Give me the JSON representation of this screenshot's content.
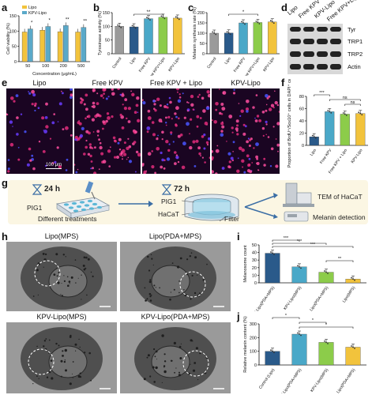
{
  "panels": {
    "a": {
      "label": "a",
      "ylabel": "Cell viability (%)",
      "xlabel": "Concentration (μg/mL)",
      "legend": [
        "Lipo",
        "KPV-Lipo"
      ],
      "colors": {
        "Lipo": "#f2c33c",
        "KPV-Lipo": "#5aa9c9"
      }
    },
    "b": {
      "label": "b",
      "ylabel": "Tyrosinase activity (%)",
      "sig": "**"
    },
    "c": {
      "label": "c",
      "ylabel": "Melanin synthesis rate (%)",
      "sig": "*"
    },
    "d": {
      "label": "d",
      "columns": [
        "Lipo",
        "Free KPV",
        "KPV-Lipo",
        "Free KPV+Lipo"
      ],
      "rows": [
        "Tyr",
        "TRP1",
        "TRP2",
        "Actin"
      ]
    },
    "e": {
      "label": "e",
      "titles": [
        "Lipo",
        "Free KPV",
        "Free KPV + Lipo",
        "KPV-Lipo"
      ],
      "scale": "100 μm"
    },
    "f": {
      "label": "f",
      "ylabel": "Proportion of BrdU⁺/Sox10⁺ cells in DAPI⁺ cells",
      "sig": [
        "***",
        "ns",
        "ns"
      ]
    },
    "g": {
      "label": "g",
      "t1": "24 h",
      "t2": "72 h",
      "pig1_left": "PIG1",
      "treat": "Different treatments",
      "pig1_mid": "PIG1",
      "hacat": "HaCaT",
      "filter": "Filter",
      "tem": "TEM of HaCaT",
      "melanin": "Melanin detection"
    },
    "h": {
      "label": "h",
      "titles": [
        "Lipo(MPS)",
        "Lipo(PDA+MPS)",
        "KPV-Lipo(MPS)",
        "KPV-Lipo(PDA+MPS)"
      ]
    },
    "i": {
      "label": "i",
      "ylabel": "Melanosome count",
      "sig": [
        "***",
        "***",
        "***",
        "**"
      ]
    },
    "j": {
      "label": "j",
      "ylabel": "Relative melanin content (%)",
      "sig": [
        "*",
        "*",
        "*"
      ]
    }
  },
  "chart_data": [
    {
      "id": "a",
      "type": "bar",
      "ylabel": "Cell viability (%)",
      "xlabel": "Concentration (μg/mL)",
      "categories": [
        "50",
        "100",
        "200",
        "500"
      ],
      "ylim": [
        0,
        150
      ],
      "yticks": [
        0,
        50,
        100,
        150
      ],
      "series": [
        {
          "name": "Lipo",
          "values": [
            97,
            103,
            98,
            97
          ]
        },
        {
          "name": "KPV-Lipo",
          "values": [
            107,
            115,
            118,
            112
          ]
        }
      ],
      "sig": [
        "*",
        "*",
        "**",
        "**"
      ]
    },
    {
      "id": "b",
      "type": "bar",
      "ylabel": "Tyrosinase activity (%)",
      "categories": [
        "Control",
        "Lipo",
        "Free KPV",
        "Free KPV+Lipo",
        "KPV-Lipo"
      ],
      "values": [
        100,
        98,
        128,
        133,
        130
      ],
      "ylim": [
        0,
        150
      ],
      "yticks": [
        0,
        50,
        100,
        150
      ],
      "colors": [
        "#9a9a9a",
        "#2a5a8a",
        "#4aa8c8",
        "#8ccc4a",
        "#f2c33c"
      ]
    },
    {
      "id": "c",
      "type": "bar",
      "ylabel": "Melanin synthesis rate (%)",
      "categories": [
        "Control",
        "Lipo",
        "Free KPV",
        "Free KPV+Lipo",
        "KPV-Lipo"
      ],
      "values": [
        100,
        101,
        150,
        152,
        155
      ],
      "ylim": [
        0,
        200
      ],
      "yticks": [
        0,
        50,
        100,
        150,
        200
      ],
      "colors": [
        "#9a9a9a",
        "#2a5a8a",
        "#4aa8c8",
        "#8ccc4a",
        "#f2c33c"
      ]
    },
    {
      "id": "f",
      "type": "bar",
      "ylabel": "Proportion of BrdU⁺/Sox10⁺ cells in DAPI⁺ cells",
      "categories": [
        "Lipo",
        "Free KPV",
        "Free KPV + Lipo",
        "KPV-Lipo"
      ],
      "values": [
        14,
        55,
        51,
        52
      ],
      "ylim": [
        0,
        80
      ],
      "yticks": [
        0,
        20,
        40,
        60,
        80
      ],
      "colors": [
        "#2a5a8a",
        "#4aa8c8",
        "#8ccc4a",
        "#f2c33c"
      ]
    },
    {
      "id": "i",
      "type": "bar",
      "ylabel": "Melanosome count",
      "categories": [
        "KPV-Lipo(PDA+MPS)",
        "KPV-Lipo(MPS)",
        "Lipo(PDA+MPS)",
        "Lipo(MPS)"
      ],
      "values": [
        39,
        21,
        14,
        5
      ],
      "ylim": [
        0,
        50
      ],
      "yticks": [
        0,
        10,
        20,
        30,
        40,
        50
      ],
      "colors": [
        "#2a5a8a",
        "#4aa8c8",
        "#8ccc4a",
        "#f2c33c"
      ]
    },
    {
      "id": "j",
      "type": "bar",
      "ylabel": "Relative melanin content (%)",
      "categories": [
        "Control (Lipo)",
        "KPV-Lipo(PDA+MPS)",
        "KPV-Lipo(MPS)",
        "Lipo(PDA+MPS)"
      ],
      "values": [
        100,
        225,
        165,
        130
      ],
      "ylim": [
        0,
        300
      ],
      "yticks": [
        0,
        100,
        200,
        300
      ],
      "colors": [
        "#2a5a8a",
        "#4aa8c8",
        "#8ccc4a",
        "#f2c33c"
      ]
    }
  ]
}
